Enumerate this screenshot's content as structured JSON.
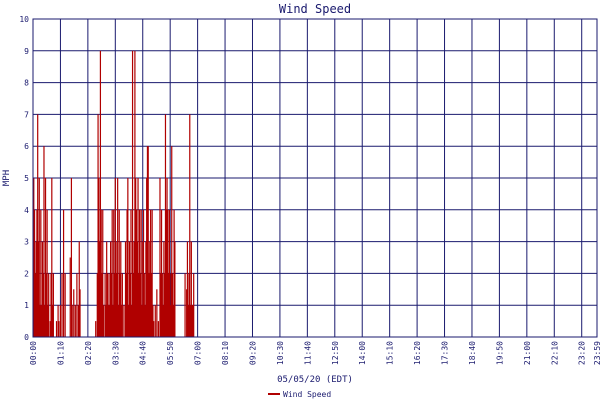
{
  "chart_data": {
    "type": "bar",
    "title": "Wind Speed",
    "xlabel": "05/05/20 (EDT)",
    "ylabel": "MPH",
    "ylim": [
      0,
      10
    ],
    "yticks": [
      "0",
      "1",
      "2",
      "3",
      "4",
      "5",
      "6",
      "7",
      "8",
      "9",
      "10"
    ],
    "xticks": [
      "00:00",
      "01:10",
      "02:20",
      "03:30",
      "04:40",
      "05:50",
      "07:00",
      "08:10",
      "09:20",
      "10:30",
      "11:40",
      "12:50",
      "14:00",
      "15:10",
      "16:20",
      "17:30",
      "18:40",
      "19:50",
      "21:00",
      "22:10",
      "23:20",
      "23:59"
    ],
    "grid": true,
    "legend_position": "bottom-center",
    "colors": {
      "series": "#b00000",
      "grid": "#1a1a6e",
      "text": "#1a1a6e"
    },
    "series": [
      {
        "name": "Wind Speed",
        "points": [
          [
            2,
            5
          ],
          [
            4,
            4
          ],
          [
            6,
            2
          ],
          [
            8,
            3
          ],
          [
            10,
            4
          ],
          [
            12,
            7
          ],
          [
            14,
            3
          ],
          [
            16,
            5
          ],
          [
            18,
            1
          ],
          [
            20,
            4
          ],
          [
            22,
            1
          ],
          [
            24,
            3
          ],
          [
            26,
            2
          ],
          [
            28,
            6
          ],
          [
            30,
            1
          ],
          [
            32,
            5
          ],
          [
            34,
            2
          ],
          [
            36,
            4
          ],
          [
            38,
            1
          ],
          [
            40,
            2
          ],
          [
            44,
            0.5
          ],
          [
            46,
            2
          ],
          [
            48,
            5
          ],
          [
            50,
            1
          ],
          [
            52,
            2
          ],
          [
            60,
            0.5
          ],
          [
            64,
            1
          ],
          [
            66,
            0.5
          ],
          [
            70,
            1
          ],
          [
            74,
            2
          ],
          [
            78,
            4
          ],
          [
            82,
            2
          ],
          [
            95,
            2.5
          ],
          [
            98,
            5
          ],
          [
            100,
            1
          ],
          [
            104,
            1.5
          ],
          [
            108,
            1
          ],
          [
            112,
            2
          ],
          [
            116,
            1
          ],
          [
            118,
            3
          ],
          [
            120,
            1.5
          ],
          [
            160,
            0.5
          ],
          [
            164,
            2
          ],
          [
            166,
            7
          ],
          [
            168,
            5
          ],
          [
            170,
            3
          ],
          [
            172,
            9
          ],
          [
            174,
            4
          ],
          [
            176,
            2
          ],
          [
            178,
            4
          ],
          [
            180,
            1
          ],
          [
            184,
            2
          ],
          [
            186,
            1
          ],
          [
            188,
            3
          ],
          [
            190,
            2
          ],
          [
            192,
            1
          ],
          [
            194,
            2
          ],
          [
            196,
            1
          ],
          [
            198,
            3
          ],
          [
            200,
            2
          ],
          [
            202,
            4
          ],
          [
            204,
            1
          ],
          [
            206,
            4
          ],
          [
            208,
            2
          ],
          [
            210,
            5
          ],
          [
            212,
            3
          ],
          [
            214,
            2
          ],
          [
            216,
            5
          ],
          [
            218,
            1
          ],
          [
            220,
            4
          ],
          [
            222,
            2
          ],
          [
            224,
            3
          ],
          [
            226,
            1
          ],
          [
            228,
            2
          ],
          [
            232,
            1
          ],
          [
            236,
            3
          ],
          [
            238,
            2
          ],
          [
            240,
            4
          ],
          [
            242,
            5
          ],
          [
            244,
            1
          ],
          [
            246,
            3
          ],
          [
            248,
            2
          ],
          [
            250,
            4
          ],
          [
            252,
            1
          ],
          [
            254,
            9
          ],
          [
            256,
            2
          ],
          [
            258,
            3
          ],
          [
            260,
            9
          ],
          [
            262,
            5
          ],
          [
            264,
            4
          ],
          [
            266,
            3
          ],
          [
            268,
            5
          ],
          [
            270,
            2
          ],
          [
            272,
            4
          ],
          [
            274,
            2
          ],
          [
            276,
            4
          ],
          [
            278,
            1
          ],
          [
            280,
            3
          ],
          [
            282,
            4
          ],
          [
            284,
            2
          ],
          [
            286,
            1
          ],
          [
            288,
            3
          ],
          [
            290,
            5
          ],
          [
            292,
            6
          ],
          [
            294,
            6
          ],
          [
            296,
            2
          ],
          [
            298,
            3
          ],
          [
            300,
            4
          ],
          [
            302,
            2
          ],
          [
            304,
            4
          ],
          [
            306,
            1
          ],
          [
            308,
            0.5
          ],
          [
            312,
            1
          ],
          [
            316,
            1.5
          ],
          [
            320,
            0.5
          ],
          [
            324,
            5
          ],
          [
            326,
            2
          ],
          [
            328,
            4
          ],
          [
            330,
            2
          ],
          [
            332,
            1
          ],
          [
            334,
            3
          ],
          [
            336,
            2
          ],
          [
            338,
            7
          ],
          [
            340,
            4
          ],
          [
            342,
            5
          ],
          [
            344,
            4
          ],
          [
            346,
            2
          ],
          [
            348,
            4
          ],
          [
            350,
            1
          ],
          [
            352,
            2
          ],
          [
            354,
            6
          ],
          [
            356,
            2
          ],
          [
            358,
            1
          ],
          [
            360,
            4
          ],
          [
            362,
            3
          ],
          [
            388,
            2
          ],
          [
            392,
            1.5
          ],
          [
            394,
            3
          ],
          [
            396,
            1
          ],
          [
            398,
            2
          ],
          [
            400,
            7
          ],
          [
            402,
            1
          ],
          [
            404,
            3
          ],
          [
            406,
            1
          ],
          [
            408,
            1
          ],
          [
            410,
            2
          ]
        ]
      }
    ]
  }
}
